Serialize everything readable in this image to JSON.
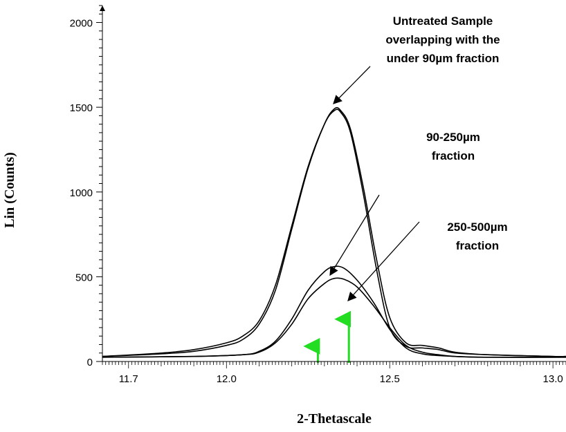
{
  "chart_data": {
    "type": "line",
    "title": "",
    "xlabel": "2-Thetascale",
    "ylabel": "Lin (Counts)",
    "xlim": [
      11.62,
      13.04
    ],
    "ylim": [
      0,
      2100
    ],
    "x_ticks": [
      11.7,
      12.0,
      12.5,
      13.0
    ],
    "x_tick_labels": [
      "11.7",
      "12.0",
      "12.5",
      "13.0"
    ],
    "y_ticks": [
      0,
      500,
      1000,
      1500,
      2000
    ],
    "y_tick_labels": [
      "0",
      "500",
      "1000",
      "1500",
      "2000"
    ],
    "series": [
      {
        "x": [
          11.62,
          11.8,
          11.9,
          12.0,
          12.05,
          12.1,
          12.15,
          12.2,
          12.25,
          12.3,
          12.33,
          12.35,
          12.38,
          12.42,
          12.46,
          12.5,
          12.55,
          12.6,
          12.65,
          12.7,
          12.8,
          13.0,
          13.04
        ],
        "values": [
          30,
          50,
          70,
          110,
          150,
          240,
          450,
          800,
          1150,
          1400,
          1480,
          1470,
          1350,
          980,
          540,
          200,
          90,
          80,
          70,
          50,
          40,
          30,
          30
        ]
      },
      {
        "x": [
          11.62,
          11.8,
          11.9,
          12.0,
          12.05,
          12.1,
          12.15,
          12.2,
          12.25,
          12.3,
          12.33,
          12.35,
          12.38,
          12.42,
          12.46,
          12.5,
          12.55,
          12.6,
          12.65,
          12.7,
          12.8,
          13.0,
          13.04
        ],
        "values": [
          30,
          45,
          60,
          95,
          130,
          220,
          420,
          780,
          1140,
          1400,
          1490,
          1480,
          1370,
          1020,
          600,
          260,
          110,
          95,
          80,
          55,
          40,
          30,
          30
        ]
      },
      {
        "x": [
          11.62,
          11.9,
          12.05,
          12.1,
          12.15,
          12.2,
          12.25,
          12.3,
          12.33,
          12.36,
          12.4,
          12.45,
          12.5,
          12.55,
          12.6,
          12.65,
          12.7,
          12.8,
          13.04
        ],
        "values": [
          25,
          30,
          40,
          60,
          120,
          250,
          420,
          530,
          560,
          550,
          480,
          350,
          190,
          80,
          45,
          35,
          30,
          25,
          25
        ]
      },
      {
        "x": [
          11.62,
          11.9,
          12.05,
          12.1,
          12.15,
          12.2,
          12.25,
          12.3,
          12.33,
          12.36,
          12.4,
          12.45,
          12.5,
          12.55,
          12.6,
          12.65,
          12.7,
          12.8,
          13.04
        ],
        "values": [
          25,
          30,
          40,
          55,
          110,
          220,
          370,
          460,
          490,
          485,
          440,
          330,
          200,
          95,
          55,
          40,
          30,
          25,
          25
        ]
      }
    ],
    "markers": [
      {
        "x": 12.28,
        "value": 90
      },
      {
        "x": 12.375,
        "value": 250
      }
    ],
    "annotations": [
      {
        "lines": [
          "Untreated Sample",
          "overlapping with the",
          "under 90µm fraction"
        ]
      },
      {
        "lines": [
          "90-250µm",
          "fraction"
        ]
      },
      {
        "lines": [
          "250-500µm",
          "fraction"
        ]
      }
    ],
    "colors": {
      "series": "#000000",
      "marker": "#22dd22"
    }
  }
}
